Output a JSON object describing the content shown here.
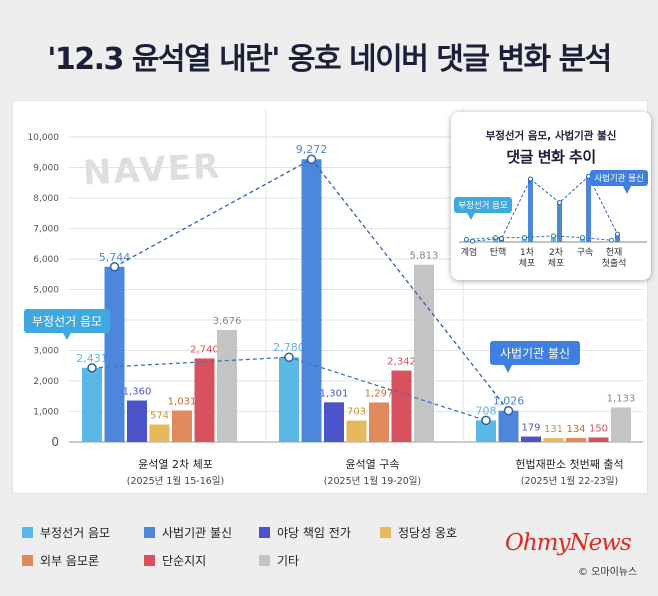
{
  "title": "'12.3 윤석열 내란' 옹호 네이버 댓글 변화 분석",
  "watermark": "NAVER",
  "chart_data": {
    "type": "bar",
    "ylim": [
      0,
      10000
    ],
    "yticks": [
      "0",
      "1,000",
      "2,000",
      "3,000",
      "4,000",
      "5,000",
      "6,000",
      "7,000",
      "8,000",
      "9,000",
      "10,000"
    ],
    "groups": [
      {
        "label": "윤석열 2차 체포",
        "sub": "(2025년 1월 15-16일)"
      },
      {
        "label": "윤석열 구속",
        "sub": "(2025년 1월 19-20일)"
      },
      {
        "label": "헌법재판소 첫번째 출석",
        "sub": "(2025년 1월 22-23일)"
      }
    ],
    "series": [
      {
        "name": "부정선거 음모",
        "color": "#5ab8e6",
        "values": [
          2431,
          2780,
          708
        ],
        "labels": [
          "2,431",
          "2,780",
          "708"
        ]
      },
      {
        "name": "사법기관 불신",
        "color": "#4d87dc",
        "values": [
          5744,
          9272,
          1026
        ],
        "labels": [
          "5,744",
          "9,272",
          "1,026"
        ]
      },
      {
        "name": "야당 책임 전가",
        "color": "#4b55c9",
        "values": [
          1360,
          1301,
          179
        ],
        "labels": [
          "1,360",
          "1,301",
          "179"
        ]
      },
      {
        "name": "정당성 옹호",
        "color": "#e5b95c",
        "values": [
          574,
          703,
          131
        ],
        "labels": [
          "574",
          "703",
          "131"
        ]
      },
      {
        "name": "외부 음모론",
        "color": "#e08a5c",
        "values": [
          1031,
          1297,
          134
        ],
        "labels": [
          "1,031",
          "1,297",
          "134"
        ]
      },
      {
        "name": "단순지지",
        "color": "#d9505e",
        "values": [
          2740,
          2342,
          150
        ],
        "labels": [
          "2,740",
          "2,342",
          "150"
        ]
      },
      {
        "name": "기타",
        "color": "#c4c4c4",
        "values": [
          3676,
          5813,
          1133
        ],
        "labels": [
          "3,676",
          "5,813",
          "1,133"
        ]
      }
    ],
    "callouts": [
      {
        "text": "부정선거 음모",
        "series": "부정선거 음모"
      },
      {
        "text": "사법기관 불신",
        "series": "사법기관 불신"
      }
    ],
    "inset": {
      "title1": "부정선거 음모, 사법기관 불신",
      "title2": "댓글 변화 추이",
      "categories": [
        "계엄",
        "탄핵",
        "1차\n체포",
        "2차\n체포",
        "구속",
        "헌재\n첫출석"
      ],
      "series_a": {
        "name": "부정선거 음모",
        "values": [
          0.3,
          0.5,
          0.5,
          0.7,
          0.5,
          0.2
        ]
      },
      "series_b": {
        "name": "사법기관 불신",
        "values": [
          0.1,
          0.4,
          7.2,
          4.5,
          7.5,
          0.9
        ]
      },
      "callout_a": "부정선거 음모",
      "callout_b": "사법기관 불신"
    }
  },
  "brand": {
    "logo": "OhmyNews",
    "copyright": "© 오마이뉴스"
  }
}
